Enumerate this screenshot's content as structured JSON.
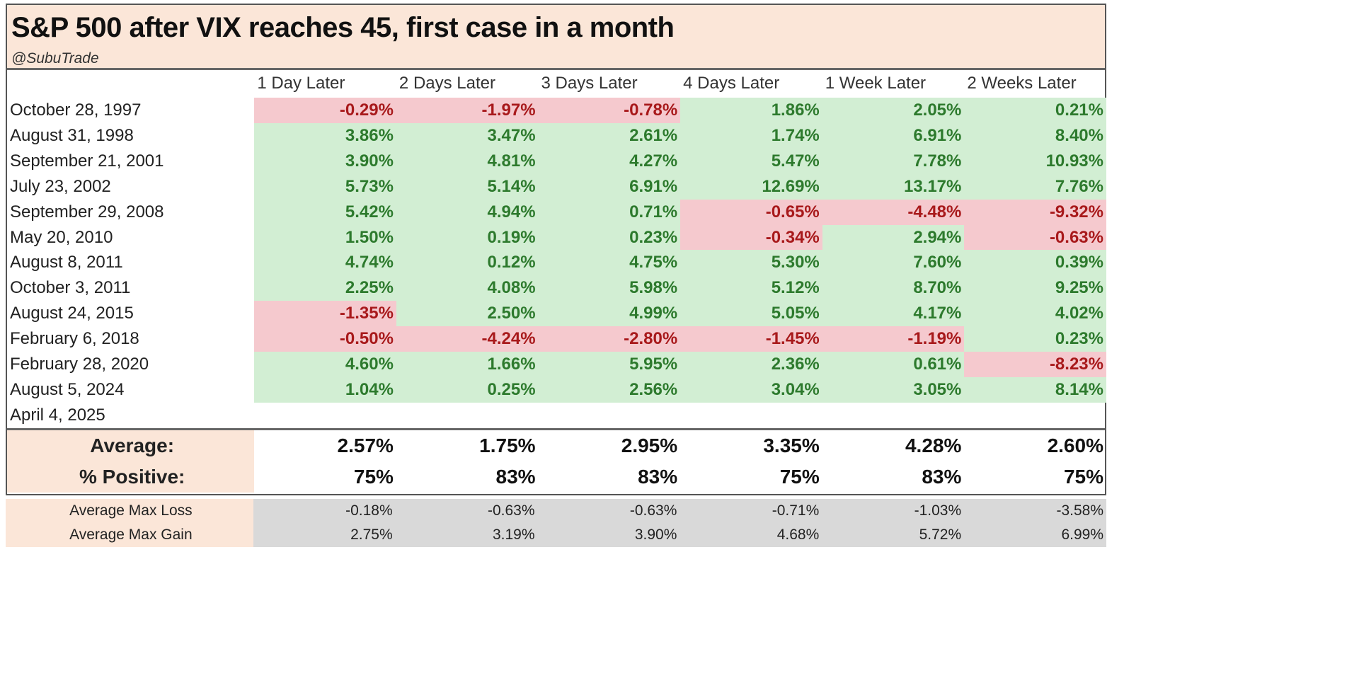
{
  "title": "S&P 500 after VIX reaches 45, first case in a month",
  "subtitle": "@SubuTrade",
  "colors": {
    "positive_bg": "#d2eed3",
    "positive_text": "#2d7a2d",
    "negative_bg": "#f5c9ce",
    "negative_text": "#a8191b",
    "header_bg": "#fbe6d8",
    "stats_bg": "#d9d9d9"
  },
  "chart_data": {
    "type": "table",
    "columns": [
      "1 Day Later",
      "2 Days Later",
      "3 Days Later",
      "4 Days Later",
      "1 Week Later",
      "2 Weeks Later"
    ],
    "rows": [
      {
        "date": "October 28, 1997",
        "values": [
          "-0.29%",
          "-1.97%",
          "-0.78%",
          "1.86%",
          "2.05%",
          "0.21%"
        ]
      },
      {
        "date": "August 31, 1998",
        "values": [
          "3.86%",
          "3.47%",
          "2.61%",
          "1.74%",
          "6.91%",
          "8.40%"
        ]
      },
      {
        "date": "September 21, 2001",
        "values": [
          "3.90%",
          "4.81%",
          "4.27%",
          "5.47%",
          "7.78%",
          "10.93%"
        ]
      },
      {
        "date": "July 23, 2002",
        "values": [
          "5.73%",
          "5.14%",
          "6.91%",
          "12.69%",
          "13.17%",
          "7.76%"
        ]
      },
      {
        "date": "September 29, 2008",
        "values": [
          "5.42%",
          "4.94%",
          "0.71%",
          "-0.65%",
          "-4.48%",
          "-9.32%"
        ]
      },
      {
        "date": "May 20, 2010",
        "values": [
          "1.50%",
          "0.19%",
          "0.23%",
          "-0.34%",
          "2.94%",
          "-0.63%"
        ]
      },
      {
        "date": "August 8, 2011",
        "values": [
          "4.74%",
          "0.12%",
          "4.75%",
          "5.30%",
          "7.60%",
          "0.39%"
        ]
      },
      {
        "date": "October 3, 2011",
        "values": [
          "2.25%",
          "4.08%",
          "5.98%",
          "5.12%",
          "8.70%",
          "9.25%"
        ]
      },
      {
        "date": "August 24, 2015",
        "values": [
          "-1.35%",
          "2.50%",
          "4.99%",
          "5.05%",
          "4.17%",
          "4.02%"
        ]
      },
      {
        "date": "February 6, 2018",
        "values": [
          "-0.50%",
          "-4.24%",
          "-2.80%",
          "-1.45%",
          "-1.19%",
          "0.23%"
        ]
      },
      {
        "date": "February 28, 2020",
        "values": [
          "4.60%",
          "1.66%",
          "5.95%",
          "2.36%",
          "0.61%",
          "-8.23%"
        ]
      },
      {
        "date": "August 5, 2024",
        "values": [
          "1.04%",
          "0.25%",
          "2.56%",
          "3.04%",
          "3.05%",
          "8.14%"
        ]
      },
      {
        "date": "April 4, 2025",
        "values": [
          "",
          "",
          "",
          "",
          "",
          ""
        ]
      }
    ],
    "summary": [
      {
        "label": "Average:",
        "values": [
          "2.57%",
          "1.75%",
          "2.95%",
          "3.35%",
          "4.28%",
          "2.60%"
        ]
      },
      {
        "label": "% Positive:",
        "values": [
          "75%",
          "83%",
          "83%",
          "75%",
          "83%",
          "75%"
        ]
      }
    ],
    "stats": [
      {
        "label": "Average Max Loss",
        "values": [
          "-0.18%",
          "-0.63%",
          "-0.63%",
          "-0.71%",
          "-1.03%",
          "-3.58%"
        ]
      },
      {
        "label": "Average Max Gain",
        "values": [
          "2.75%",
          "3.19%",
          "3.90%",
          "4.68%",
          "5.72%",
          "6.99%"
        ]
      }
    ]
  }
}
